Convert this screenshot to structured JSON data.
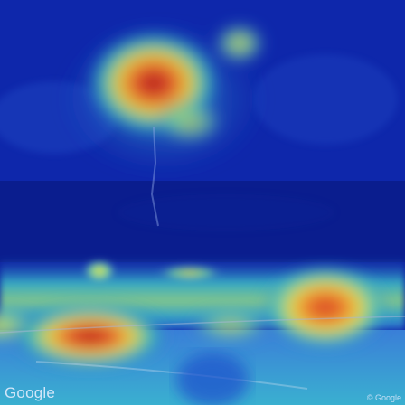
{
  "overlay": {
    "logo_text": "Google",
    "copyright_text": "© Google"
  },
  "colors": {
    "background": "#0b1f9a",
    "low": "#1330c8",
    "mid": "#2fb9c9",
    "high_yellow": "#e8e04a",
    "high_orange": "#e97a2a",
    "peak": "#b0141e"
  }
}
